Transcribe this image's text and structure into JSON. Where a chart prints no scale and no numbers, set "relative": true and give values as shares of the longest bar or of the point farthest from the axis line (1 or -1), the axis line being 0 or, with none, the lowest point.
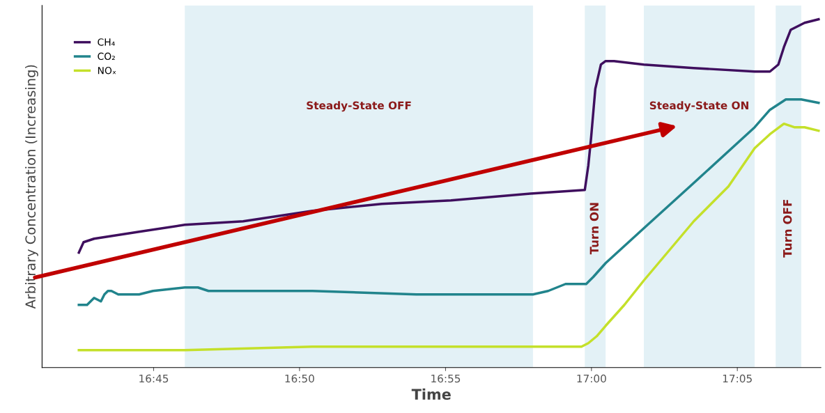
{
  "chart_data": {
    "type": "line",
    "relative": true,
    "xlabel": "Time",
    "ylabel": "Arbitrary Concentration (Increasing)",
    "xlim": [
      16.6863,
      17.131
    ],
    "xticks": [
      {
        "value": 16.75,
        "label": "16:45"
      },
      {
        "value": 16.8333,
        "label": "16:50"
      },
      {
        "value": 16.9167,
        "label": "16:55"
      },
      {
        "value": 17.0,
        "label": "17:00"
      },
      {
        "value": 17.0833,
        "label": "17:05"
      }
    ],
    "grid": false,
    "legend": "top left",
    "marker": "none",
    "line_style": "solid",
    "bands": [
      {
        "axis": "x",
        "from": 16.7678,
        "to": 16.9666,
        "label": "Steady-State OFF",
        "color": "#e3f1f6"
      },
      {
        "axis": "x",
        "from": 16.9962,
        "to": 17.0081,
        "label": "Turn ON",
        "color": "#e3f1f6"
      },
      {
        "axis": "x",
        "from": 17.0299,
        "to": 17.0932,
        "label": "Steady-State ON",
        "color": "#e3f1f6"
      },
      {
        "axis": "x",
        "from": 17.1052,
        "to": 17.1198,
        "label": "Turn OFF",
        "color": "#e3f1f6"
      }
    ],
    "series": [
      {
        "name": "CH₄",
        "color": "#3f0f5e",
        "x": [
          16.7073,
          16.71,
          16.716,
          16.7417,
          16.7678,
          16.8011,
          16.8407,
          16.8803,
          16.9198,
          16.9666,
          16.9962,
          16.9982,
          16.9998,
          17.0022,
          17.0054,
          17.0081,
          17.0129,
          17.0299,
          17.0584,
          17.0932,
          17.1019,
          17.1067,
          17.1099,
          17.1138,
          17.1217,
          17.1297
        ],
        "values": [
          0.33,
          0.36,
          0.37,
          0.39,
          0.41,
          0.42,
          0.45,
          0.47,
          0.48,
          0.5,
          0.51,
          0.58,
          0.66,
          0.8,
          0.87,
          0.88,
          0.88,
          0.87,
          0.86,
          0.85,
          0.85,
          0.87,
          0.92,
          0.97,
          0.99,
          1.0
        ]
      },
      {
        "name": "CO₂",
        "color": "#21848c",
        "x": [
          16.7073,
          16.712,
          16.716,
          16.7199,
          16.7219,
          16.7239,
          16.7259,
          16.7298,
          16.7358,
          16.7417,
          16.7496,
          16.7678,
          16.7753,
          16.7813,
          16.8407,
          16.9,
          16.9666,
          16.9753,
          16.9852,
          16.9911,
          16.997,
          17.001,
          17.0081,
          17.0299,
          17.0584,
          17.0932,
          17.1019,
          17.111,
          17.1198,
          17.1297
        ],
        "values": [
          0.18,
          0.18,
          0.2,
          0.19,
          0.21,
          0.22,
          0.22,
          0.21,
          0.21,
          0.21,
          0.22,
          0.23,
          0.23,
          0.22,
          0.22,
          0.21,
          0.21,
          0.22,
          0.24,
          0.24,
          0.24,
          0.26,
          0.3,
          0.4,
          0.53,
          0.69,
          0.74,
          0.77,
          0.77,
          0.76
        ]
      },
      {
        "name": "NOₓ",
        "color": "#c4e02a",
        "x": [
          16.7073,
          16.7678,
          16.8407,
          16.9666,
          16.9943,
          16.9982,
          17.003,
          17.0081,
          17.0188,
          17.0299,
          17.0584,
          17.0782,
          17.0932,
          17.1019,
          17.1099,
          17.1158,
          17.1217,
          17.1297
        ],
        "values": [
          0.05,
          0.05,
          0.06,
          0.06,
          0.06,
          0.07,
          0.09,
          0.12,
          0.18,
          0.25,
          0.42,
          0.52,
          0.63,
          0.67,
          0.7,
          0.69,
          0.69,
          0.68
        ]
      }
    ]
  }
}
